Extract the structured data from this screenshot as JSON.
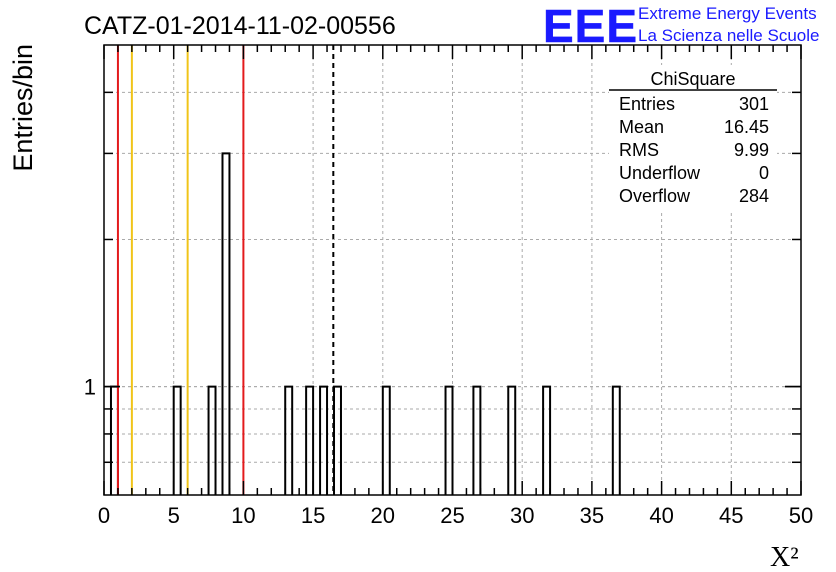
{
  "header": {
    "run_title": "CATZ-01-2014-11-02-00556",
    "logo_text": "EEE",
    "logo_line1": "Extreme Energy Events",
    "logo_line2": "La Scienza nelle Scuole"
  },
  "stats_box": {
    "title": "ChiSquare",
    "rows": [
      {
        "label": "Entries",
        "value": "301"
      },
      {
        "label": "Mean",
        "value": "16.45"
      },
      {
        "label": "RMS",
        "value": "9.99"
      },
      {
        "label": "Underflow",
        "value": "0"
      },
      {
        "label": "Overflow",
        "value": "284"
      }
    ]
  },
  "colors": {
    "red_line": "#e31a1c",
    "yellow_line": "#f0c419",
    "logo_blue": "#1a1aff",
    "grid": "#aaaaaa"
  },
  "chart_data": {
    "type": "bar",
    "title": "CATZ-01-2014-11-02-00556",
    "xlabel": "X²",
    "ylabel": "Entries/bin",
    "xlim": [
      0,
      50
    ],
    "log_y": true,
    "ylim": [
      0.6,
      5.0
    ],
    "grid": true,
    "bin_width": 0.5,
    "x_ticks": [
      0,
      5,
      10,
      15,
      20,
      25,
      30,
      35,
      40,
      45,
      50
    ],
    "y_tick_labels": [
      {
        "value": 1,
        "label": "1"
      }
    ],
    "bins": [
      {
        "x": 0.5,
        "count": 1
      },
      {
        "x": 5.0,
        "count": 1
      },
      {
        "x": 7.5,
        "count": 1
      },
      {
        "x": 8.5,
        "count": 3
      },
      {
        "x": 13.0,
        "count": 1
      },
      {
        "x": 14.5,
        "count": 1
      },
      {
        "x": 15.5,
        "count": 1
      },
      {
        "x": 16.5,
        "count": 1
      },
      {
        "x": 20.0,
        "count": 1
      },
      {
        "x": 24.5,
        "count": 1
      },
      {
        "x": 26.5,
        "count": 1
      },
      {
        "x": 29.0,
        "count": 1
      },
      {
        "x": 31.5,
        "count": 1
      },
      {
        "x": 36.5,
        "count": 1
      }
    ],
    "vertical_lines": [
      {
        "x": 1,
        "style": "red"
      },
      {
        "x": 2,
        "style": "yellow"
      },
      {
        "x": 6,
        "style": "yellow"
      },
      {
        "x": 10,
        "style": "red"
      },
      {
        "x": 16.45,
        "style": "dashed-black"
      }
    ]
  }
}
